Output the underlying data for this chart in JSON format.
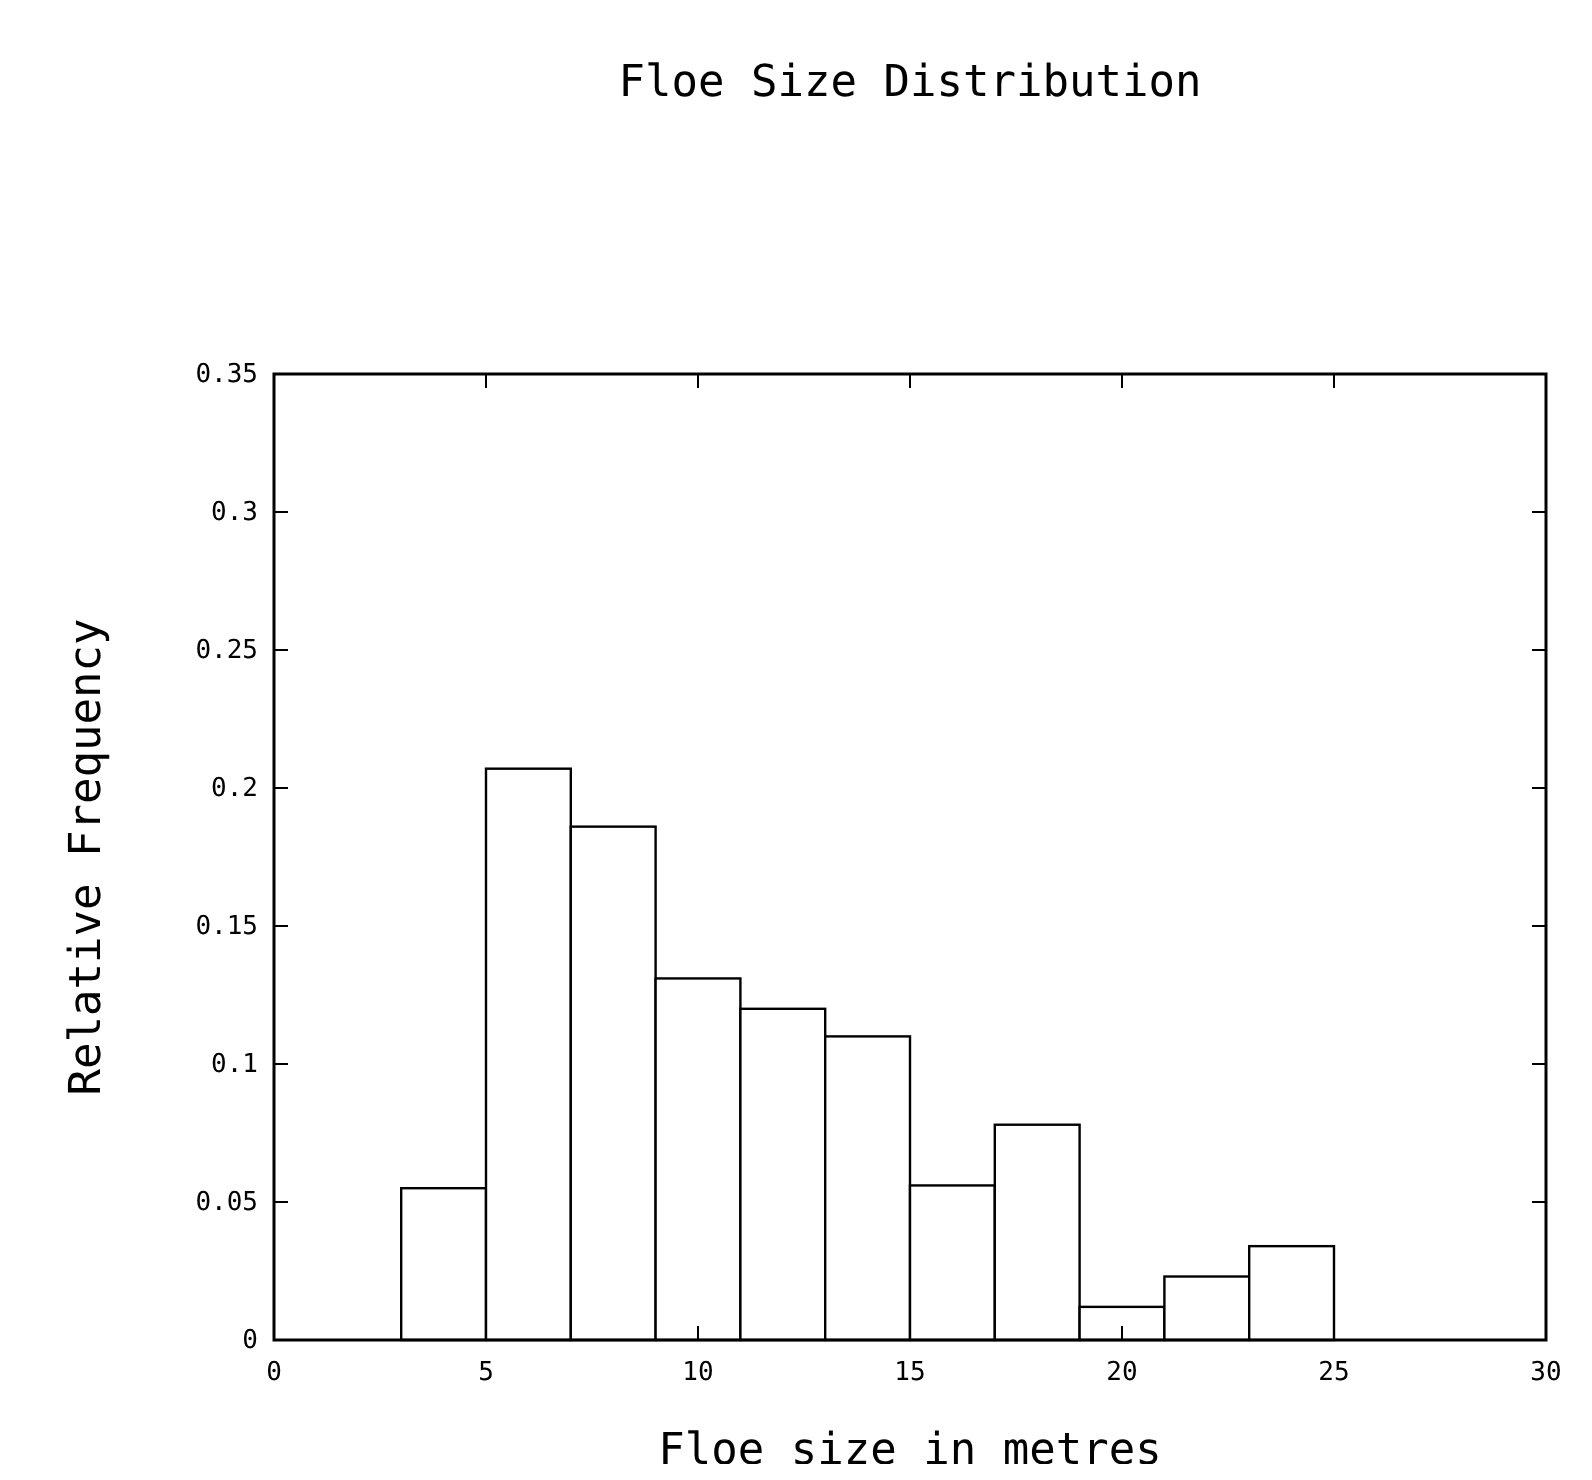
{
  "chart_data": {
    "type": "histogram",
    "title": "Floe Size Distribution",
    "xlabel": "Floe size in metres",
    "ylabel": "Relative Frequency",
    "bins": [
      3,
      5,
      7,
      9,
      11,
      13,
      15,
      17,
      19,
      21,
      23,
      25
    ],
    "values": [
      0.055,
      0.207,
      0.186,
      0.131,
      0.12,
      0.11,
      0.056,
      0.078,
      0.012,
      0.023,
      0.034
    ],
    "color": "#ffffff",
    "xlim": [
      0,
      30
    ],
    "xticks": [
      0,
      5,
      10,
      15,
      20,
      25,
      30
    ],
    "ylim": [
      0,
      0.35
    ],
    "yticks": [
      0,
      0.05,
      0.1,
      0.15,
      0.2,
      0.25,
      0.3,
      0.35
    ],
    "grid": false
  }
}
